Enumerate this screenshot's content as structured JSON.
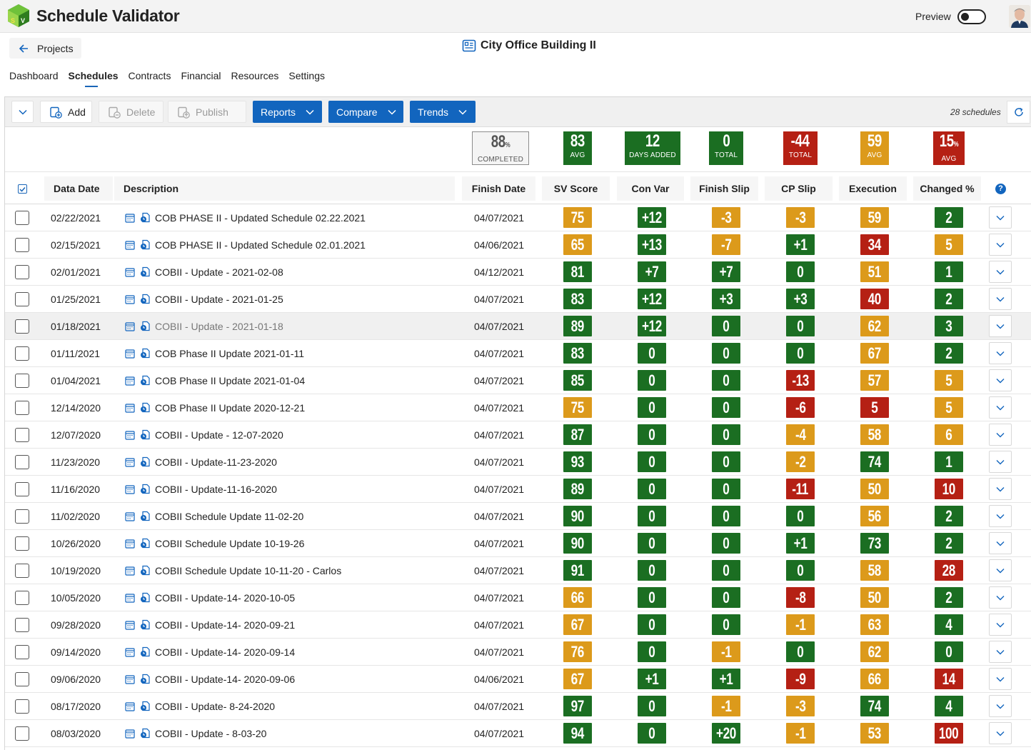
{
  "app": {
    "title": "Schedule Validator",
    "preview_label": "Preview"
  },
  "nav": {
    "back_label": "Projects",
    "project_title": "City Office Building II",
    "tabs": [
      "Dashboard",
      "Schedules",
      "Contracts",
      "Financial",
      "Resources",
      "Settings"
    ],
    "active_tab": "Schedules"
  },
  "toolbar": {
    "add_label": "Add",
    "delete_label": "Delete",
    "publish_label": "Publish",
    "reports_label": "Reports",
    "compare_label": "Compare",
    "trends_label": "Trends",
    "schedule_count": "28 schedules"
  },
  "colors": {
    "green": "#1b6e22",
    "orange": "#dc9a1b",
    "red": "#b52014",
    "blue": "#1265be"
  },
  "summary": {
    "completed": {
      "value": "88",
      "unit": "%",
      "label": "COMPLETED"
    },
    "sv_score": {
      "value": "83",
      "label": "AVG",
      "color": "green"
    },
    "con_var": {
      "value": "12",
      "label": "DAYS ADDED",
      "color": "green"
    },
    "finish_slip": {
      "value": "0",
      "label": "TOTAL",
      "color": "green"
    },
    "cp_slip": {
      "value": "-44",
      "label": "TOTAL",
      "color": "red"
    },
    "execution": {
      "value": "59",
      "label": "AVG",
      "color": "orange"
    },
    "changed": {
      "value": "15",
      "unit": "%",
      "label": "AVG",
      "color": "red"
    }
  },
  "table": {
    "headers": {
      "data_date": "Data Date",
      "description": "Description",
      "finish_date": "Finish Date",
      "sv_score": "SV Score",
      "con_var": "Con Var",
      "finish_slip": "Finish Slip",
      "cp_slip": "CP Slip",
      "execution": "Execution",
      "changed": "Changed %"
    },
    "rows": [
      {
        "date": "02/22/2021",
        "desc": "COB PHASE II - Updated Schedule 02.22.2021",
        "finish": "04/07/2021",
        "sv": [
          "75",
          "orange"
        ],
        "con": [
          "+12",
          "green"
        ],
        "fs": [
          "-3",
          "orange"
        ],
        "cp": [
          "-3",
          "orange"
        ],
        "ex": [
          "59",
          "orange"
        ],
        "ch": [
          "2",
          "green"
        ]
      },
      {
        "date": "02/15/2021",
        "desc": "COB PHASE II - Updated Schedule 02.01.2021",
        "finish": "04/06/2021",
        "sv": [
          "65",
          "orange"
        ],
        "con": [
          "+13",
          "green"
        ],
        "fs": [
          "-7",
          "orange"
        ],
        "cp": [
          "+1",
          "green"
        ],
        "ex": [
          "34",
          "red"
        ],
        "ch": [
          "5",
          "orange"
        ]
      },
      {
        "date": "02/01/2021",
        "desc": "COBII - Update - 2021-02-08",
        "finish": "04/12/2021",
        "sv": [
          "81",
          "green"
        ],
        "con": [
          "+7",
          "green"
        ],
        "fs": [
          "+7",
          "green"
        ],
        "cp": [
          "0",
          "green"
        ],
        "ex": [
          "51",
          "orange"
        ],
        "ch": [
          "1",
          "green"
        ]
      },
      {
        "date": "01/25/2021",
        "desc": "COBII - Update - 2021-01-25",
        "finish": "04/07/2021",
        "sv": [
          "83",
          "green"
        ],
        "con": [
          "+12",
          "green"
        ],
        "fs": [
          "+3",
          "green"
        ],
        "cp": [
          "+3",
          "green"
        ],
        "ex": [
          "40",
          "red"
        ],
        "ch": [
          "2",
          "green"
        ]
      },
      {
        "date": "01/18/2021",
        "desc": "COBII - Update - 2021-01-18",
        "finish": "04/07/2021",
        "sv": [
          "89",
          "green"
        ],
        "con": [
          "+12",
          "green"
        ],
        "fs": [
          "0",
          "green"
        ],
        "cp": [
          "0",
          "green"
        ],
        "ex": [
          "62",
          "orange"
        ],
        "ch": [
          "3",
          "green"
        ],
        "highlight": true
      },
      {
        "date": "01/11/2021",
        "desc": "COB Phase II Update 2021-01-11",
        "finish": "04/07/2021",
        "sv": [
          "83",
          "green"
        ],
        "con": [
          "0",
          "green"
        ],
        "fs": [
          "0",
          "green"
        ],
        "cp": [
          "0",
          "green"
        ],
        "ex": [
          "67",
          "orange"
        ],
        "ch": [
          "2",
          "green"
        ]
      },
      {
        "date": "01/04/2021",
        "desc": "COB Phase II Update 2021-01-04",
        "finish": "04/07/2021",
        "sv": [
          "85",
          "green"
        ],
        "con": [
          "0",
          "green"
        ],
        "fs": [
          "0",
          "green"
        ],
        "cp": [
          "-13",
          "red"
        ],
        "ex": [
          "57",
          "orange"
        ],
        "ch": [
          "5",
          "orange"
        ]
      },
      {
        "date": "12/14/2020",
        "desc": "COB Phase II Update 2020-12-21",
        "finish": "04/07/2021",
        "sv": [
          "75",
          "orange"
        ],
        "con": [
          "0",
          "green"
        ],
        "fs": [
          "0",
          "green"
        ],
        "cp": [
          "-6",
          "red"
        ],
        "ex": [
          "5",
          "red"
        ],
        "ch": [
          "5",
          "orange"
        ]
      },
      {
        "date": "12/07/2020",
        "desc": "COBII - Update - 12-07-2020",
        "finish": "04/07/2021",
        "sv": [
          "87",
          "green"
        ],
        "con": [
          "0",
          "green"
        ],
        "fs": [
          "0",
          "green"
        ],
        "cp": [
          "-4",
          "orange"
        ],
        "ex": [
          "58",
          "orange"
        ],
        "ch": [
          "6",
          "orange"
        ]
      },
      {
        "date": "11/23/2020",
        "desc": "COBII - Update-11-23-2020",
        "finish": "04/07/2021",
        "sv": [
          "93",
          "green"
        ],
        "con": [
          "0",
          "green"
        ],
        "fs": [
          "0",
          "green"
        ],
        "cp": [
          "-2",
          "orange"
        ],
        "ex": [
          "74",
          "green"
        ],
        "ch": [
          "1",
          "green"
        ]
      },
      {
        "date": "11/16/2020",
        "desc": "COBII - Update-11-16-2020",
        "finish": "04/07/2021",
        "sv": [
          "89",
          "green"
        ],
        "con": [
          "0",
          "green"
        ],
        "fs": [
          "0",
          "green"
        ],
        "cp": [
          "-11",
          "red"
        ],
        "ex": [
          "50",
          "orange"
        ],
        "ch": [
          "10",
          "red"
        ]
      },
      {
        "date": "11/02/2020",
        "desc": "COBII Schedule Update 11-02-20",
        "finish": "04/07/2021",
        "sv": [
          "90",
          "green"
        ],
        "con": [
          "0",
          "green"
        ],
        "fs": [
          "0",
          "green"
        ],
        "cp": [
          "0",
          "green"
        ],
        "ex": [
          "56",
          "orange"
        ],
        "ch": [
          "2",
          "green"
        ]
      },
      {
        "date": "10/26/2020",
        "desc": "COBII Schedule Update 10-19-26",
        "finish": "04/07/2021",
        "sv": [
          "90",
          "green"
        ],
        "con": [
          "0",
          "green"
        ],
        "fs": [
          "0",
          "green"
        ],
        "cp": [
          "+1",
          "green"
        ],
        "ex": [
          "73",
          "green"
        ],
        "ch": [
          "2",
          "green"
        ]
      },
      {
        "date": "10/19/2020",
        "desc": "COBII Schedule Update 10-11-20 - Carlos",
        "finish": "04/07/2021",
        "sv": [
          "91",
          "green"
        ],
        "con": [
          "0",
          "green"
        ],
        "fs": [
          "0",
          "green"
        ],
        "cp": [
          "0",
          "green"
        ],
        "ex": [
          "58",
          "orange"
        ],
        "ch": [
          "28",
          "red"
        ]
      },
      {
        "date": "10/05/2020",
        "desc": "COBII - Update-14- 2020-10-05",
        "finish": "04/07/2021",
        "sv": [
          "66",
          "orange"
        ],
        "con": [
          "0",
          "green"
        ],
        "fs": [
          "0",
          "green"
        ],
        "cp": [
          "-8",
          "red"
        ],
        "ex": [
          "50",
          "orange"
        ],
        "ch": [
          "2",
          "green"
        ]
      },
      {
        "date": "09/28/2020",
        "desc": "COBII - Update-14- 2020-09-21",
        "finish": "04/07/2021",
        "sv": [
          "67",
          "orange"
        ],
        "con": [
          "0",
          "green"
        ],
        "fs": [
          "0",
          "green"
        ],
        "cp": [
          "-1",
          "orange"
        ],
        "ex": [
          "63",
          "orange"
        ],
        "ch": [
          "4",
          "green"
        ]
      },
      {
        "date": "09/14/2020",
        "desc": "COBII - Update-14- 2020-09-14",
        "finish": "04/07/2021",
        "sv": [
          "76",
          "orange"
        ],
        "con": [
          "0",
          "green"
        ],
        "fs": [
          "-1",
          "orange"
        ],
        "cp": [
          "0",
          "green"
        ],
        "ex": [
          "62",
          "orange"
        ],
        "ch": [
          "0",
          "green"
        ]
      },
      {
        "date": "09/06/2020",
        "desc": "COBII - Update-14- 2020-09-06",
        "finish": "04/06/2021",
        "sv": [
          "67",
          "orange"
        ],
        "con": [
          "+1",
          "green"
        ],
        "fs": [
          "+1",
          "green"
        ],
        "cp": [
          "-9",
          "red"
        ],
        "ex": [
          "66",
          "orange"
        ],
        "ch": [
          "14",
          "red"
        ]
      },
      {
        "date": "08/17/2020",
        "desc": "COBII - Update- 8-24-2020",
        "finish": "04/07/2021",
        "sv": [
          "97",
          "green"
        ],
        "con": [
          "0",
          "green"
        ],
        "fs": [
          "-1",
          "orange"
        ],
        "cp": [
          "-3",
          "orange"
        ],
        "ex": [
          "74",
          "green"
        ],
        "ch": [
          "4",
          "green"
        ]
      },
      {
        "date": "08/03/2020",
        "desc": "COBII - Update - 8-03-20",
        "finish": "04/07/2021",
        "sv": [
          "94",
          "green"
        ],
        "con": [
          "0",
          "green"
        ],
        "fs": [
          "+20",
          "green"
        ],
        "cp": [
          "-1",
          "orange"
        ],
        "ex": [
          "53",
          "orange"
        ],
        "ch": [
          "100",
          "red"
        ]
      }
    ]
  }
}
